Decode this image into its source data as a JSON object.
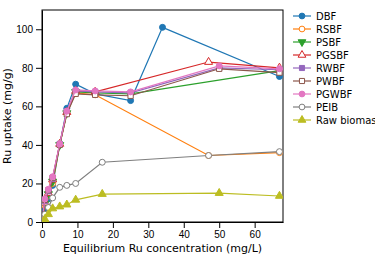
{
  "chart_data": {
    "type": "line",
    "xlabel": "Equilibrium Ru concentration (mg/L)",
    "ylabel": "Ru uptake (mg/g)",
    "xlim": [
      0,
      68
    ],
    "ylim": [
      0,
      110
    ],
    "xticks": [
      0,
      10,
      20,
      30,
      40,
      50,
      60
    ],
    "yticks": [
      0,
      20,
      40,
      60,
      80,
      100
    ],
    "grid": false,
    "legend": "right",
    "series": [
      {
        "name": "DBF",
        "marker": "circle",
        "x": [
          0,
          0.8,
          1.8,
          3.0,
          5.0,
          7.0,
          9.5,
          15.0,
          25.0,
          34.0,
          67.0
        ],
        "values": [
          0,
          7.0,
          12.0,
          19.0,
          40.0,
          59.0,
          71.5,
          66.5,
          63.0,
          101.0,
          75.5
        ]
      },
      {
        "name": "RSBF",
        "marker": "open-circle",
        "x": [
          0,
          0.8,
          1.8,
          3.0,
          5.0,
          7.0,
          9.5,
          15.0,
          47.0,
          67.0
        ],
        "values": [
          0,
          8.5,
          13.5,
          20.0,
          40.0,
          56.5,
          67.0,
          66.0,
          34.5,
          36.0
        ]
      },
      {
        "name": "PSBF",
        "marker": "triangle-down",
        "x": [
          0,
          0.8,
          1.8,
          3.0,
          5.0,
          7.0,
          9.5,
          15.0,
          25.0,
          67.0
        ],
        "values": [
          0,
          9.5,
          14.5,
          21.0,
          40.0,
          56.5,
          67.5,
          67.0,
          66.5,
          78.5
        ]
      },
      {
        "name": "PGSBF",
        "marker": "open-triangle-up",
        "x": [
          0,
          0.8,
          1.8,
          3.0,
          5.0,
          7.0,
          9.5,
          15.0,
          47.0,
          67.0
        ],
        "values": [
          0,
          10.0,
          15.0,
          22.0,
          40.5,
          57.0,
          68.0,
          67.5,
          83.0,
          80.0
        ]
      },
      {
        "name": "RWBF",
        "marker": "square",
        "x": [
          0,
          0.8,
          1.8,
          3.0,
          5.0,
          7.0,
          9.5,
          15.0,
          25.0,
          50.0,
          67.0
        ],
        "values": [
          0,
          11.0,
          16.0,
          22.5,
          40.5,
          57.5,
          68.0,
          67.5,
          67.0,
          80.0,
          79.0
        ]
      },
      {
        "name": "PWBF",
        "marker": "open-square",
        "x": [
          0,
          0.8,
          1.8,
          3.0,
          5.0,
          7.0,
          9.5,
          15.0,
          25.0,
          50.0,
          67.0
        ],
        "values": [
          0,
          11.5,
          16.5,
          23.0,
          40.0,
          56.0,
          66.5,
          66.0,
          65.5,
          79.5,
          77.5
        ]
      },
      {
        "name": "PGWBF",
        "marker": "circle",
        "x": [
          0,
          0.8,
          1.8,
          3.0,
          5.0,
          7.0,
          9.5,
          15.0,
          25.0,
          50.0,
          67.0
        ],
        "values": [
          0,
          12.0,
          17.0,
          23.5,
          40.5,
          57.5,
          68.5,
          68.0,
          67.5,
          81.0,
          79.5
        ]
      },
      {
        "name": "PEIB",
        "marker": "open-circle",
        "x": [
          0,
          0.8,
          1.8,
          3.0,
          5.0,
          7.0,
          9.5,
          17.0,
          47.0,
          67.0
        ],
        "values": [
          0,
          4.0,
          7.5,
          12.5,
          18.0,
          19.0,
          20.0,
          31.0,
          34.5,
          36.5
        ]
      },
      {
        "name": "Raw biomass",
        "marker": "triangle-up",
        "x": [
          0,
          0.8,
          1.8,
          3.0,
          5.0,
          7.0,
          9.5,
          17.0,
          50.0,
          67.0
        ],
        "values": [
          0,
          1.5,
          4.0,
          7.0,
          8.0,
          9.0,
          11.5,
          14.5,
          15.0,
          13.5
        ]
      }
    ]
  }
}
